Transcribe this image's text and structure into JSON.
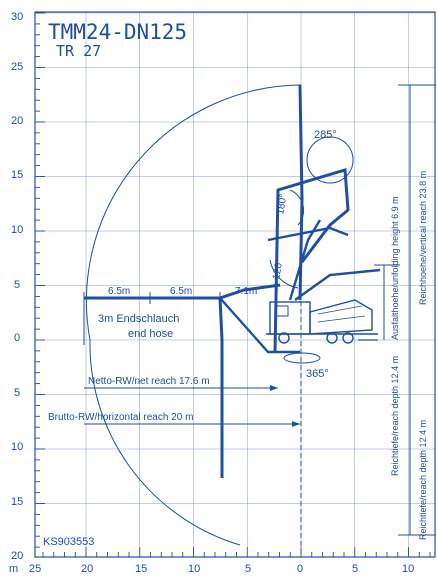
{
  "header": {
    "model": "TMM24-DN125",
    "variant": "TR 27"
  },
  "axes": {
    "unit": "m",
    "y_labels": [
      "30",
      "25",
      "20",
      "15",
      "10",
      "5",
      "0",
      "5",
      "10",
      "15",
      "20"
    ],
    "x_labels": [
      "25",
      "20",
      "15",
      "10",
      "5",
      "0",
      "5",
      "10"
    ]
  },
  "reach": {
    "segment_left": "6.5m",
    "segment_mid": "6.5m",
    "segment_right": "7.1m",
    "hose_de": "3m Endschlauch",
    "hose_en": "end hose",
    "net_reach": "Netto-RW/net reach 17.6 m",
    "horizontal_reach": "Brutto-RW/horizontal reach 20 m",
    "vertical_reach": "Reichhoehe/vertical reach 23.8 m",
    "unfolding_height": "Ausfalthoehe/unfolding height 6.9 m",
    "reach_depth": "Reichtiefe/reach depth 12.4 m"
  },
  "angles": {
    "a285": "285°",
    "a180": "180°",
    "a120": "120°",
    "a365": "365°"
  },
  "footer": {
    "code": "KS903553"
  },
  "colors": {
    "ink": "#1e4fa0",
    "background": "#ffffff"
  }
}
